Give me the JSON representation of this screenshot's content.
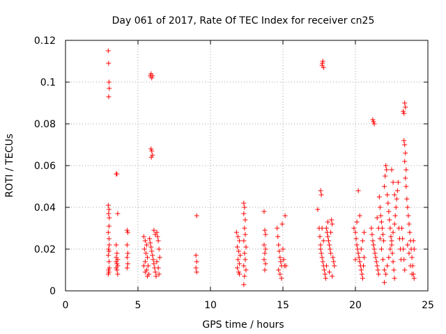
{
  "chart_data": {
    "type": "scatter",
    "title": "Day 061 of 2017, Rate Of TEC Index for receiver cn25",
    "xlabel": "GPS time / hours",
    "ylabel": "ROTI / TECUs",
    "xlim": [
      0,
      25
    ],
    "ylim": [
      0,
      0.12
    ],
    "xticks": [
      0,
      5,
      10,
      15,
      20,
      25
    ],
    "yticks": [
      0,
      0.02,
      0.04,
      0.06,
      0.08,
      0.1,
      0.12
    ],
    "xtick_labels": [
      "0",
      "5",
      "10",
      "15",
      "20",
      "25"
    ],
    "ytick_labels": [
      "0",
      "0.02",
      "0.04",
      "0.06",
      "0.08",
      "0.1",
      "0.12"
    ],
    "grid": true,
    "marker": "+",
    "color": "#ff0000",
    "series": [
      {
        "name": "ROTI",
        "points": [
          [
            2.95,
            0.115
          ],
          [
            2.97,
            0.109
          ],
          [
            3.0,
            0.1
          ],
          [
            3.02,
            0.097
          ],
          [
            2.98,
            0.093
          ],
          [
            2.95,
            0.041
          ],
          [
            3.0,
            0.039
          ],
          [
            2.97,
            0.037
          ],
          [
            3.02,
            0.035
          ],
          [
            3.0,
            0.031
          ],
          [
            2.95,
            0.028
          ],
          [
            3.0,
            0.025
          ],
          [
            3.02,
            0.022
          ],
          [
            2.97,
            0.02
          ],
          [
            3.0,
            0.019
          ],
          [
            2.95,
            0.017
          ],
          [
            3.0,
            0.014
          ],
          [
            3.02,
            0.011
          ],
          [
            2.97,
            0.01
          ],
          [
            3.0,
            0.009
          ],
          [
            2.95,
            0.008
          ],
          [
            3.5,
            0.056
          ],
          [
            3.55,
            0.056
          ],
          [
            3.6,
            0.037
          ],
          [
            3.5,
            0.022
          ],
          [
            3.55,
            0.018
          ],
          [
            3.5,
            0.016
          ],
          [
            3.6,
            0.015
          ],
          [
            3.5,
            0.014
          ],
          [
            3.55,
            0.013
          ],
          [
            3.6,
            0.012
          ],
          [
            3.5,
            0.011
          ],
          [
            3.55,
            0.01
          ],
          [
            3.6,
            0.008
          ],
          [
            4.25,
            0.029
          ],
          [
            4.3,
            0.028
          ],
          [
            4.25,
            0.022
          ],
          [
            4.3,
            0.018
          ],
          [
            4.25,
            0.016
          ],
          [
            4.3,
            0.013
          ],
          [
            4.25,
            0.011
          ],
          [
            5.85,
            0.103
          ],
          [
            5.9,
            0.104
          ],
          [
            5.95,
            0.102
          ],
          [
            6.0,
            0.103
          ],
          [
            5.9,
            0.068
          ],
          [
            5.95,
            0.067
          ],
          [
            6.0,
            0.065
          ],
          [
            5.92,
            0.064
          ],
          [
            5.4,
            0.026
          ],
          [
            5.5,
            0.024
          ],
          [
            5.6,
            0.022
          ],
          [
            5.45,
            0.02
          ],
          [
            5.55,
            0.018
          ],
          [
            5.65,
            0.016
          ],
          [
            5.5,
            0.014
          ],
          [
            5.7,
            0.012
          ],
          [
            5.6,
            0.01
          ],
          [
            5.75,
            0.008
          ],
          [
            5.8,
            0.025
          ],
          [
            5.85,
            0.023
          ],
          [
            5.9,
            0.021
          ],
          [
            5.95,
            0.019
          ],
          [
            6.0,
            0.017
          ],
          [
            6.05,
            0.015
          ],
          [
            6.1,
            0.013
          ],
          [
            6.15,
            0.011
          ],
          [
            6.2,
            0.009
          ],
          [
            6.25,
            0.007
          ],
          [
            6.3,
            0.028
          ],
          [
            6.35,
            0.026
          ],
          [
            6.4,
            0.024
          ],
          [
            6.45,
            0.02
          ],
          [
            6.5,
            0.016
          ],
          [
            6.1,
            0.029
          ],
          [
            6.2,
            0.027
          ],
          [
            5.4,
            0.012
          ],
          [
            5.5,
            0.009
          ],
          [
            5.65,
            0.007
          ],
          [
            6.3,
            0.014
          ],
          [
            6.4,
            0.011
          ],
          [
            6.45,
            0.008
          ],
          [
            9.05,
            0.036
          ],
          [
            9.0,
            0.017
          ],
          [
            9.05,
            0.014
          ],
          [
            9.0,
            0.011
          ],
          [
            9.05,
            0.009
          ],
          [
            11.8,
            0.028
          ],
          [
            11.9,
            0.026
          ],
          [
            12.0,
            0.024
          ],
          [
            11.85,
            0.021
          ],
          [
            11.95,
            0.019
          ],
          [
            12.05,
            0.017
          ],
          [
            11.9,
            0.015
          ],
          [
            12.0,
            0.013
          ],
          [
            11.85,
            0.011
          ],
          [
            11.95,
            0.009
          ],
          [
            12.0,
            0.008
          ],
          [
            12.3,
            0.042
          ],
          [
            12.35,
            0.04
          ],
          [
            12.3,
            0.037
          ],
          [
            12.4,
            0.034
          ],
          [
            12.35,
            0.03
          ],
          [
            12.4,
            0.027
          ],
          [
            12.3,
            0.024
          ],
          [
            12.45,
            0.021
          ],
          [
            12.35,
            0.018
          ],
          [
            12.4,
            0.015
          ],
          [
            12.3,
            0.012
          ],
          [
            12.45,
            0.01
          ],
          [
            12.35,
            0.007
          ],
          [
            12.3,
            0.003
          ],
          [
            13.7,
            0.038
          ],
          [
            13.75,
            0.029
          ],
          [
            13.8,
            0.027
          ],
          [
            13.7,
            0.022
          ],
          [
            13.8,
            0.02
          ],
          [
            13.75,
            0.018
          ],
          [
            13.7,
            0.015
          ],
          [
            13.8,
            0.013
          ],
          [
            13.75,
            0.01
          ],
          [
            14.6,
            0.03
          ],
          [
            14.65,
            0.026
          ],
          [
            14.7,
            0.022
          ],
          [
            14.75,
            0.019
          ],
          [
            14.8,
            0.016
          ],
          [
            14.85,
            0.014
          ],
          [
            14.9,
            0.012
          ],
          [
            14.7,
            0.01
          ],
          [
            14.8,
            0.008
          ],
          [
            14.9,
            0.006
          ],
          [
            15.0,
            0.02
          ],
          [
            15.05,
            0.015
          ],
          [
            15.1,
            0.012
          ],
          [
            15.15,
            0.036
          ],
          [
            15.2,
            0.012
          ],
          [
            14.95,
            0.032
          ],
          [
            17.4,
            0.039
          ],
          [
            17.6,
            0.048
          ],
          [
            17.65,
            0.046
          ],
          [
            17.7,
            0.108
          ],
          [
            17.75,
            0.11
          ],
          [
            17.8,
            0.107
          ],
          [
            17.72,
            0.109
          ],
          [
            17.5,
            0.03
          ],
          [
            17.55,
            0.026
          ],
          [
            17.6,
            0.022
          ],
          [
            17.65,
            0.018
          ],
          [
            17.7,
            0.016
          ],
          [
            17.75,
            0.014
          ],
          [
            17.8,
            0.012
          ],
          [
            17.85,
            0.01
          ],
          [
            17.9,
            0.008
          ],
          [
            17.95,
            0.006
          ],
          [
            18.0,
            0.03
          ],
          [
            18.05,
            0.028
          ],
          [
            18.1,
            0.026
          ],
          [
            18.15,
            0.024
          ],
          [
            18.2,
            0.022
          ],
          [
            18.25,
            0.02
          ],
          [
            18.3,
            0.018
          ],
          [
            18.35,
            0.034
          ],
          [
            18.4,
            0.032
          ],
          [
            18.45,
            0.016
          ],
          [
            18.5,
            0.014
          ],
          [
            18.55,
            0.012
          ],
          [
            17.6,
            0.02
          ],
          [
            17.8,
            0.024
          ],
          [
            18.0,
            0.012
          ],
          [
            18.2,
            0.009
          ],
          [
            18.4,
            0.007
          ],
          [
            17.7,
            0.03
          ],
          [
            18.1,
            0.033
          ],
          [
            18.3,
            0.028
          ],
          [
            19.9,
            0.03
          ],
          [
            20.0,
            0.028
          ],
          [
            20.05,
            0.025
          ],
          [
            20.1,
            0.022
          ],
          [
            20.15,
            0.02
          ],
          [
            20.2,
            0.018
          ],
          [
            20.25,
            0.016
          ],
          [
            20.3,
            0.014
          ],
          [
            20.35,
            0.012
          ],
          [
            20.4,
            0.01
          ],
          [
            20.45,
            0.008
          ],
          [
            20.5,
            0.006
          ],
          [
            20.2,
            0.048
          ],
          [
            20.1,
            0.033
          ],
          [
            20.3,
            0.036
          ],
          [
            20.0,
            0.015
          ],
          [
            20.4,
            0.02
          ],
          [
            20.5,
            0.024
          ],
          [
            20.6,
            0.028
          ],
          [
            20.6,
            0.016
          ],
          [
            20.55,
            0.012
          ],
          [
            21.2,
            0.082
          ],
          [
            21.25,
            0.081
          ],
          [
            21.3,
            0.08
          ],
          [
            21.1,
            0.03
          ],
          [
            21.15,
            0.027
          ],
          [
            21.2,
            0.024
          ],
          [
            21.25,
            0.022
          ],
          [
            21.3,
            0.02
          ],
          [
            21.35,
            0.018
          ],
          [
            21.4,
            0.016
          ],
          [
            21.45,
            0.014
          ],
          [
            21.5,
            0.012
          ],
          [
            21.55,
            0.01
          ],
          [
            21.6,
            0.008
          ],
          [
            21.65,
            0.045
          ],
          [
            21.7,
            0.04
          ],
          [
            21.75,
            0.036
          ],
          [
            21.8,
            0.033
          ],
          [
            21.85,
            0.03
          ],
          [
            21.9,
            0.027
          ],
          [
            21.95,
            0.024
          ],
          [
            22.0,
            0.05
          ],
          [
            22.05,
            0.055
          ],
          [
            22.1,
            0.06
          ],
          [
            22.15,
            0.058
          ],
          [
            22.2,
            0.046
          ],
          [
            22.25,
            0.042
          ],
          [
            22.3,
            0.038
          ],
          [
            22.35,
            0.034
          ],
          [
            22.4,
            0.03
          ],
          [
            22.45,
            0.026
          ],
          [
            22.5,
            0.022
          ],
          [
            22.55,
            0.018
          ],
          [
            22.6,
            0.014
          ],
          [
            22.65,
            0.01
          ],
          [
            22.7,
            0.006
          ],
          [
            22.0,
            0.004
          ],
          [
            22.1,
            0.008
          ],
          [
            22.2,
            0.012
          ],
          [
            22.3,
            0.016
          ],
          [
            22.4,
            0.02
          ],
          [
            22.5,
            0.024
          ],
          [
            22.6,
            0.028
          ],
          [
            22.7,
            0.032
          ],
          [
            22.75,
            0.036
          ],
          [
            22.8,
            0.04
          ],
          [
            22.85,
            0.044
          ],
          [
            22.9,
            0.048
          ],
          [
            22.95,
            0.052
          ],
          [
            23.0,
            0.03
          ],
          [
            23.05,
            0.025
          ],
          [
            23.1,
            0.02
          ],
          [
            23.15,
            0.015
          ],
          [
            22.5,
            0.058
          ],
          [
            22.6,
            0.052
          ],
          [
            22.7,
            0.046
          ],
          [
            21.5,
            0.035
          ],
          [
            21.6,
            0.03
          ],
          [
            21.7,
            0.025
          ],
          [
            21.8,
            0.02
          ],
          [
            21.9,
            0.015
          ],
          [
            22.0,
            0.01
          ],
          [
            23.3,
            0.086
          ],
          [
            23.35,
            0.085
          ],
          [
            23.4,
            0.09
          ],
          [
            23.45,
            0.088
          ],
          [
            23.35,
            0.072
          ],
          [
            23.4,
            0.07
          ],
          [
            23.45,
            0.066
          ],
          [
            23.4,
            0.062
          ],
          [
            23.5,
            0.058
          ],
          [
            23.45,
            0.054
          ],
          [
            23.5,
            0.05
          ],
          [
            23.55,
            0.044
          ],
          [
            23.6,
            0.04
          ],
          [
            23.65,
            0.036
          ],
          [
            23.7,
            0.032
          ],
          [
            23.75,
            0.028
          ],
          [
            23.8,
            0.024
          ],
          [
            23.85,
            0.02
          ],
          [
            23.9,
            0.016
          ],
          [
            23.95,
            0.012
          ],
          [
            24.0,
            0.008
          ],
          [
            24.05,
            0.006
          ],
          [
            23.2,
            0.03
          ],
          [
            23.25,
            0.025
          ],
          [
            23.3,
            0.02
          ],
          [
            23.35,
            0.015
          ],
          [
            23.4,
            0.01
          ],
          [
            23.6,
            0.022
          ],
          [
            23.7,
            0.018
          ],
          [
            23.8,
            0.012
          ],
          [
            23.9,
            0.008
          ],
          [
            24.0,
            0.024
          ],
          [
            24.05,
            0.02
          ]
        ]
      }
    ]
  }
}
